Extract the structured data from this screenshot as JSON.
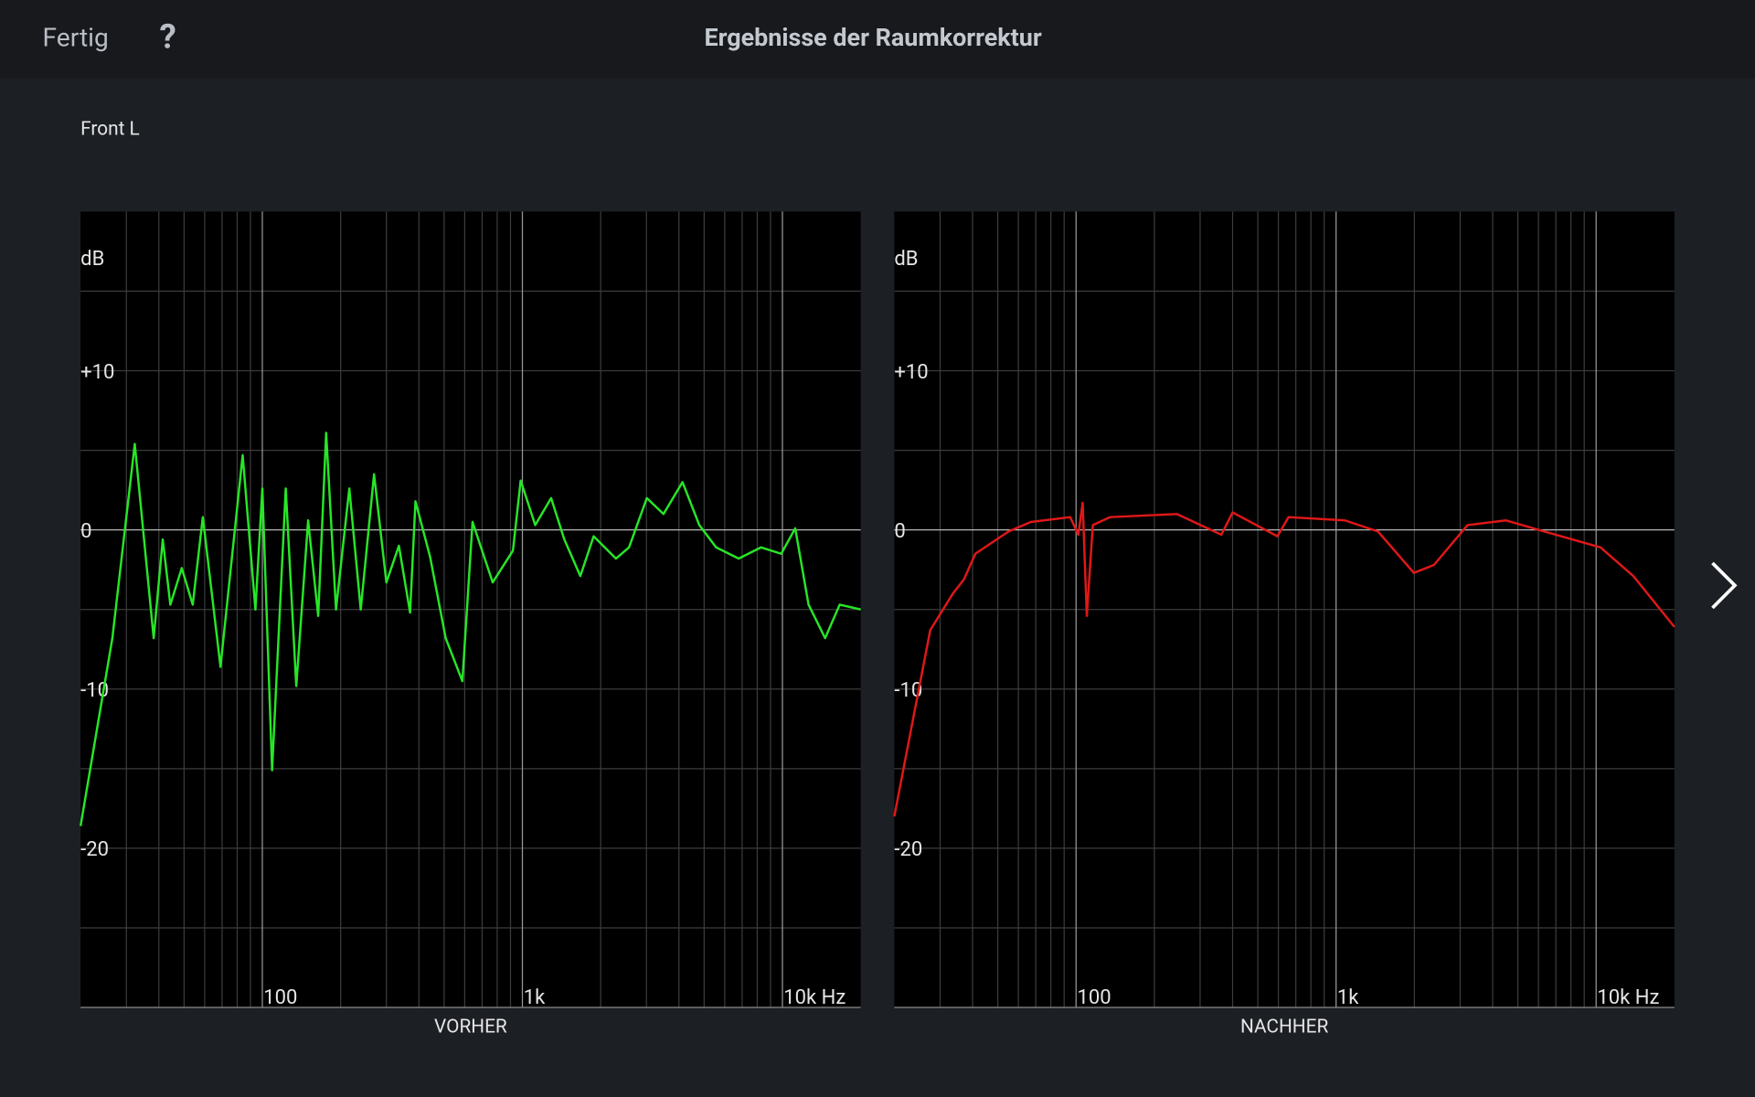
{
  "header": {
    "done": "Fertig",
    "help": "?",
    "title": "Ergebnisse der Raumkorrektur"
  },
  "channel": "Front L",
  "chart_data": [
    {
      "type": "line",
      "x_label": "VORHER",
      "y_label": "dB",
      "log_x": true,
      "grid": true,
      "color": "#27e627",
      "xlim": [
        20,
        20000
      ],
      "ylim": [
        -30,
        20
      ],
      "xticks": [
        100,
        {
          "value": 1000,
          "label": "1k"
        },
        {
          "value": 10000,
          "label": "10k Hz"
        }
      ],
      "xminor": [
        30,
        40,
        50,
        60,
        70,
        80,
        90,
        200,
        300,
        400,
        500,
        600,
        700,
        800,
        900,
        2000,
        3000,
        4000,
        5000,
        6000,
        7000,
        8000,
        9000
      ],
      "yticks": [
        {
          "value": 10,
          "label": "+10"
        },
        0,
        -10,
        -20
      ],
      "yminor": [
        15,
        5,
        -5,
        -15,
        -25
      ],
      "x": [
        20,
        26.5,
        32.3,
        38.2,
        41.4,
        44.3,
        49,
        54,
        59,
        69,
        84,
        94,
        100,
        109,
        123,
        135,
        150,
        164,
        176,
        192,
        216,
        239,
        269,
        300,
        335,
        370,
        388,
        442,
        507,
        588,
        643,
        769,
        920,
        985,
        1120,
        1290,
        1450,
        1670,
        1880,
        2290,
        2570,
        3010,
        3490,
        4130,
        4790,
        5560,
        6790,
        8280,
        9900,
        11200,
        12600,
        14600,
        16600,
        20000
      ],
      "values": [
        -18.6,
        -6.8,
        5.4,
        -6.8,
        -0.6,
        -4.7,
        -2.4,
        -4.7,
        0.8,
        -8.6,
        4.7,
        -5,
        2.6,
        -15.1,
        2.6,
        -9.8,
        0.6,
        -5.4,
        6.1,
        -5,
        2.6,
        -5,
        3.5,
        -3.3,
        -1,
        -5.2,
        1.8,
        -1.7,
        -6.8,
        -9.5,
        0.5,
        -3.3,
        -1.3,
        3.1,
        0.3,
        2,
        -0.6,
        -2.9,
        -0.4,
        -1.8,
        -1.1,
        2,
        1,
        3,
        0.3,
        -1.1,
        -1.8,
        -1.1,
        -1.5,
        0.1,
        -4.7,
        -6.8,
        -4.7,
        -5
      ]
    },
    {
      "type": "line",
      "x_label": "NACHHER",
      "y_label": "dB",
      "log_x": true,
      "grid": true,
      "color": "#e01818",
      "xlim": [
        20,
        20000
      ],
      "ylim": [
        -30,
        20
      ],
      "xticks": [
        100,
        {
          "value": 1000,
          "label": "1k"
        },
        {
          "value": 10000,
          "label": "10k Hz"
        }
      ],
      "xminor": [
        30,
        40,
        50,
        60,
        70,
        80,
        90,
        200,
        300,
        400,
        500,
        600,
        700,
        800,
        900,
        2000,
        3000,
        4000,
        5000,
        6000,
        7000,
        8000,
        9000
      ],
      "yticks": [
        {
          "value": 10,
          "label": "+10"
        },
        0,
        -10,
        -20
      ],
      "yminor": [
        15,
        5,
        -5,
        -15,
        -25
      ],
      "x": [
        20,
        27.5,
        33.6,
        37.1,
        41,
        55,
        67,
        95,
        102,
        106,
        110,
        116,
        135,
        244,
        362,
        400,
        595,
        656,
        1080,
        1450,
        1990,
        2380,
        3200,
        4500,
        6330,
        10400,
        13900,
        20000
      ],
      "values": [
        -18,
        -6.3,
        -4,
        -3.1,
        -1.5,
        -0.1,
        0.5,
        0.8,
        -0.3,
        1.7,
        -5.4,
        0.3,
        0.8,
        1,
        -0.3,
        1.1,
        -0.4,
        0.8,
        0.6,
        -0.1,
        -2.7,
        -2.2,
        0.3,
        0.6,
        -0.1,
        -1.1,
        -2.9,
        -6.1
      ]
    }
  ]
}
